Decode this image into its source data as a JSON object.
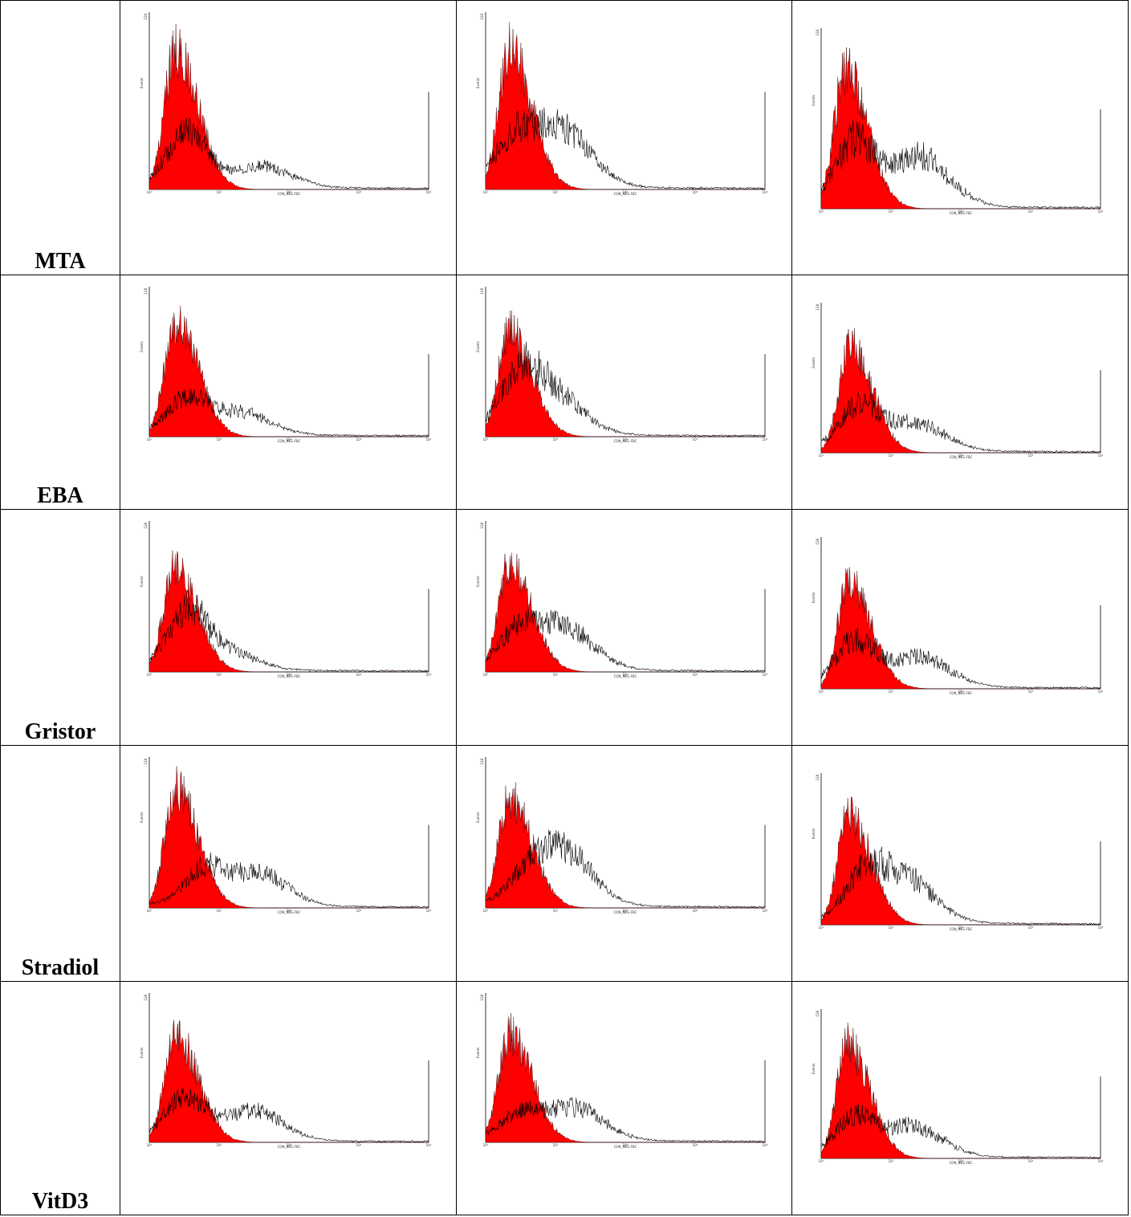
{
  "colors": {
    "control_fill": "#ff0000",
    "sample_line": "#000000",
    "border": "#000000"
  },
  "rows": [
    {
      "label": "MTA"
    },
    {
      "label": "EBA"
    },
    {
      "label": "Gristor"
    },
    {
      "label": "Stradiol"
    },
    {
      "label": "VitD3"
    }
  ],
  "chart_data": [
    {
      "type": "area",
      "row": "MTA",
      "column": 1,
      "xlabel": "CON_NEG-FBC",
      "ylabel": "Events",
      "y_tick_top": "128",
      "x_scale": "log",
      "xlim": [
        1,
        10000
      ],
      "x_ticks": [
        "10⁰",
        "10¹",
        "10²",
        "10³",
        "10⁴"
      ],
      "series": [
        {
          "role": "control",
          "filled": true,
          "peak_x": 2.4,
          "peak_height": 0.8
        },
        {
          "role": "sample",
          "filled": false,
          "peak_x": 3.5,
          "peak_height": 0.3,
          "second_peak_x": 40,
          "second_peak_height": 0.12
        }
      ]
    },
    {
      "type": "area",
      "row": "MTA",
      "column": 2,
      "xlabel": "CON_NEG-FBC",
      "ylabel": "Events",
      "y_tick_top": "128",
      "x_scale": "log",
      "xlim": [
        1,
        10000
      ],
      "x_ticks": [
        "10⁰",
        "10¹",
        "10²",
        "10³",
        "10⁴"
      ],
      "series": [
        {
          "role": "control",
          "filled": true,
          "peak_x": 2.2,
          "peak_height": 0.8
        },
        {
          "role": "sample",
          "filled": false,
          "peak_x": 2.5,
          "peak_height": 0.22,
          "second_peak_x": 12,
          "second_peak_height": 0.33
        }
      ]
    },
    {
      "type": "area",
      "row": "MTA",
      "column": 3,
      "xlabel": "CON_NEG-FBC",
      "ylabel": "Events",
      "y_tick_top": "128",
      "x_scale": "log",
      "xlim": [
        1,
        10000
      ],
      "x_ticks": [
        "10⁰",
        "10¹",
        "10²",
        "10³",
        "10⁴"
      ],
      "series": [
        {
          "role": "control",
          "filled": true,
          "peak_x": 2.2,
          "peak_height": 0.78
        },
        {
          "role": "sample",
          "filled": false,
          "peak_x": 3.0,
          "peak_height": 0.34,
          "second_peak_x": 25,
          "second_peak_height": 0.28
        }
      ]
    },
    {
      "type": "area",
      "row": "EBA",
      "column": 1,
      "xlabel": "CON_NEG-FBC",
      "ylabel": "Events",
      "y_tick_top": "128",
      "x_scale": "log",
      "xlim": [
        1,
        10000
      ],
      "x_ticks": [
        "10⁰",
        "10¹",
        "10²",
        "10³",
        "10⁴"
      ],
      "series": [
        {
          "role": "control",
          "filled": true,
          "peak_x": 2.4,
          "peak_height": 0.78
        },
        {
          "role": "sample",
          "filled": false,
          "peak_x": 3.5,
          "peak_height": 0.23,
          "second_peak_x": 20,
          "second_peak_height": 0.15
        }
      ]
    },
    {
      "type": "area",
      "row": "EBA",
      "column": 2,
      "xlabel": "CON_NEG-FBC",
      "ylabel": "Events",
      "y_tick_top": "128",
      "x_scale": "log",
      "xlim": [
        1,
        10000
      ],
      "x_ticks": [
        "10⁰",
        "10¹",
        "10²",
        "10³",
        "10⁴"
      ],
      "series": [
        {
          "role": "control",
          "filled": true,
          "peak_x": 2.2,
          "peak_height": 0.72
        },
        {
          "role": "sample",
          "filled": false,
          "peak_x": 3.0,
          "peak_height": 0.32,
          "second_peak_x": 9,
          "second_peak_height": 0.27
        }
      ]
    },
    {
      "type": "area",
      "row": "EBA",
      "column": 3,
      "xlabel": "CON_NEG-FBC",
      "ylabel": "Events",
      "y_tick_top": "128",
      "x_scale": "log",
      "xlim": [
        1,
        10000
      ],
      "x_ticks": [
        "10⁰",
        "10¹",
        "10²",
        "10³",
        "10⁴"
      ],
      "series": [
        {
          "role": "control",
          "filled": true,
          "peak_x": 2.6,
          "peak_height": 0.72
        },
        {
          "role": "sample",
          "filled": false,
          "peak_x": 3.5,
          "peak_height": 0.28,
          "second_peak_x": 22,
          "second_peak_height": 0.18
        }
      ]
    },
    {
      "type": "area",
      "row": "Gristor",
      "column": 1,
      "xlabel": "CON_NEG-FBC",
      "ylabel": "Events",
      "y_tick_top": "128",
      "x_scale": "log",
      "xlim": [
        1,
        10000
      ],
      "x_ticks": [
        "10⁰",
        "10¹",
        "10²",
        "10³",
        "10⁴"
      ],
      "series": [
        {
          "role": "control",
          "filled": true,
          "peak_x": 2.3,
          "peak_height": 0.7
        },
        {
          "role": "sample",
          "filled": false,
          "peak_x": 3.5,
          "peak_height": 0.35,
          "second_peak_x": 12,
          "second_peak_height": 0.12
        }
      ]
    },
    {
      "type": "area",
      "row": "Gristor",
      "column": 2,
      "xlabel": "CON_NEG-FBC",
      "ylabel": "Events",
      "y_tick_top": "128",
      "x_scale": "log",
      "xlim": [
        1,
        10000
      ],
      "x_ticks": [
        "10⁰",
        "10¹",
        "10²",
        "10³",
        "10⁴"
      ],
      "series": [
        {
          "role": "control",
          "filled": true,
          "peak_x": 2.2,
          "peak_height": 0.73
        },
        {
          "role": "sample",
          "filled": false,
          "peak_x": 3.0,
          "peak_height": 0.22,
          "second_peak_x": 13,
          "second_peak_height": 0.28
        }
      ]
    },
    {
      "type": "area",
      "row": "Gristor",
      "column": 3,
      "xlabel": "CON_NEG-FBC",
      "ylabel": "Events",
      "y_tick_top": "128",
      "x_scale": "log",
      "xlim": [
        1,
        10000
      ],
      "x_ticks": [
        "10⁰",
        "10¹",
        "10²",
        "10³",
        "10⁴"
      ],
      "series": [
        {
          "role": "control",
          "filled": true,
          "peak_x": 2.5,
          "peak_height": 0.72
        },
        {
          "role": "sample",
          "filled": false,
          "peak_x": 3.0,
          "peak_height": 0.28,
          "second_peak_x": 25,
          "second_peak_height": 0.2
        }
      ]
    },
    {
      "type": "area",
      "row": "Stradiol",
      "column": 1,
      "xlabel": "CON_NEG-FBC",
      "ylabel": "Events",
      "y_tick_top": "128",
      "x_scale": "log",
      "xlim": [
        1,
        10000
      ],
      "x_ticks": [
        "10⁰",
        "10¹",
        "10²",
        "10³",
        "10⁴"
      ],
      "series": [
        {
          "role": "control",
          "filled": true,
          "peak_x": 2.4,
          "peak_height": 0.8
        },
        {
          "role": "sample",
          "filled": false,
          "peak_x": 6.0,
          "peak_height": 0.22,
          "second_peak_x": 35,
          "second_peak_height": 0.22
        }
      ]
    },
    {
      "type": "area",
      "row": "Stradiol",
      "column": 2,
      "xlabel": "CON_NEG-FBC",
      "ylabel": "Events",
      "y_tick_top": "128",
      "x_scale": "log",
      "xlim": [
        1,
        10000
      ],
      "x_ticks": [
        "10⁰",
        "10¹",
        "10²",
        "10³",
        "10⁴"
      ],
      "series": [
        {
          "role": "control",
          "filled": true,
          "peak_x": 2.2,
          "peak_height": 0.74
        },
        {
          "role": "sample",
          "filled": false,
          "peak_x": 4.0,
          "peak_height": 0.1,
          "second_peak_x": 12,
          "second_peak_height": 0.38
        }
      ]
    },
    {
      "type": "area",
      "row": "Stradiol",
      "column": 3,
      "xlabel": "CON_NEG-FBC",
      "ylabel": "Events",
      "y_tick_top": "128",
      "x_scale": "log",
      "xlim": [
        1,
        10000
      ],
      "x_ticks": [
        "10⁰",
        "10¹",
        "10²",
        "10³",
        "10⁴"
      ],
      "series": [
        {
          "role": "control",
          "filled": true,
          "peak_x": 2.5,
          "peak_height": 0.74
        },
        {
          "role": "sample",
          "filled": false,
          "peak_x": 4.0,
          "peak_height": 0.25,
          "second_peak_x": 15,
          "second_peak_height": 0.3
        }
      ]
    },
    {
      "type": "area",
      "row": "VitD3",
      "column": 1,
      "xlabel": "CON_NEG-FBC",
      "ylabel": "Events",
      "y_tick_top": "128",
      "x_scale": "log",
      "xlim": [
        1,
        10000
      ],
      "x_ticks": [
        "10⁰",
        "10¹",
        "10²",
        "10³",
        "10⁴"
      ],
      "series": [
        {
          "role": "control",
          "filled": true,
          "peak_x": 2.4,
          "peak_height": 0.74
        },
        {
          "role": "sample",
          "filled": false,
          "peak_x": 3.2,
          "peak_height": 0.28,
          "second_peak_x": 30,
          "second_peak_height": 0.2
        }
      ]
    },
    {
      "type": "area",
      "row": "VitD3",
      "column": 2,
      "xlabel": "CON_NEG-FBC",
      "ylabel": "Events",
      "y_tick_top": "128",
      "x_scale": "log",
      "xlim": [
        1,
        10000
      ],
      "x_ticks": [
        "10⁰",
        "10¹",
        "10²",
        "10³",
        "10⁴"
      ],
      "series": [
        {
          "role": "control",
          "filled": true,
          "peak_x": 2.2,
          "peak_height": 0.74
        },
        {
          "role": "sample",
          "filled": false,
          "peak_x": 3.0,
          "peak_height": 0.15,
          "second_peak_x": 18,
          "second_peak_height": 0.22
        }
      ]
    },
    {
      "type": "area",
      "row": "VitD3",
      "column": 3,
      "xlabel": "CON_NEG-FBC",
      "ylabel": "Events",
      "y_tick_top": "128",
      "x_scale": "log",
      "xlim": [
        1,
        10000
      ],
      "x_ticks": [
        "10⁰",
        "10¹",
        "10²",
        "10³",
        "10⁴"
      ],
      "series": [
        {
          "role": "control",
          "filled": true,
          "peak_x": 2.4,
          "peak_height": 0.78
        },
        {
          "role": "sample",
          "filled": false,
          "peak_x": 3.0,
          "peak_height": 0.24,
          "second_peak_x": 20,
          "second_peak_height": 0.2
        }
      ]
    }
  ]
}
